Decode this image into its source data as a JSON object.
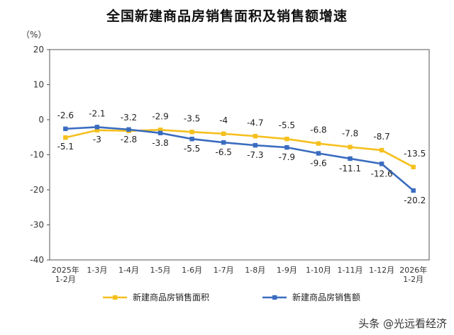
{
  "chart_data": {
    "type": "line",
    "title": "全国新建商品房销售面积及销售额增速",
    "unit": "（%）",
    "categories": [
      "2025年\n1-2月",
      "1-3月",
      "1-4月",
      "1-5月",
      "1-6月",
      "1-7月",
      "1-8月",
      "1-9月",
      "1-10月",
      "1-11月",
      "1-12月",
      "2026年\n1-2月"
    ],
    "series": [
      {
        "name": "新建商品房销售面积",
        "color": "#F5C01E",
        "values": [
          -5.1,
          -3.0,
          -3.2,
          -2.9,
          -3.5,
          -4.0,
          -4.7,
          -5.5,
          -6.8,
          -7.8,
          -8.7,
          -13.5
        ]
      },
      {
        "name": "新建商品房销售额",
        "color": "#3A6CC0",
        "values": [
          -2.6,
          -2.1,
          -2.8,
          -3.8,
          -5.5,
          -6.5,
          -7.3,
          -7.9,
          -9.6,
          -11.1,
          -12.6,
          -20.2
        ]
      }
    ],
    "ylim": [
      -40,
      20
    ],
    "yticks": [
      20,
      10,
      0,
      -10,
      -20,
      -30,
      -40
    ],
    "grid": false,
    "legend": "bottom"
  },
  "watermark": "头条 @光远看经济"
}
